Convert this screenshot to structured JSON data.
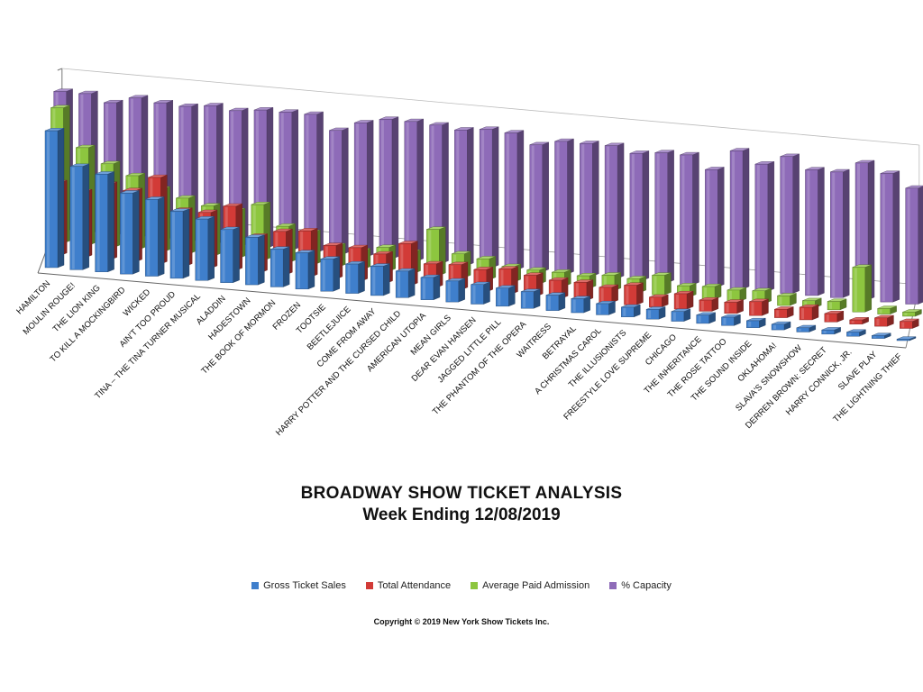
{
  "chart_data": {
    "type": "bar",
    "style": "3d-clustered-column",
    "title": "BROADWAY SHOW TICKET ANALYSIS",
    "subtitle": "Week Ending 12/08/2019",
    "categories": [
      "HAMILTON",
      "MOULIN ROUGE!",
      "THE LION KING",
      "TO KILL A MOCKINGBIRD",
      "WICKED",
      "AIN'T TOO PROUD",
      "TINA – THE TINA TURNER MUSICAL",
      "ALADDIN",
      "HADESTOWN",
      "THE BOOK OF MORMON",
      "FROZEN",
      "TOOTSIE",
      "BEETLEJUICE",
      "COME FROM AWAY",
      "HARRY POTTER AND THE CURSED CHILD",
      "AMERICAN UTOPIA",
      "MEAN GIRLS",
      "DEAR EVAN HANSEN",
      "JAGGED LITTLE PILL",
      "THE PHANTOM OF THE OPERA",
      "WAITRESS",
      "BETRAYAL",
      "A CHRISTMAS CAROL",
      "THE ILLUSIONISTS",
      "FREESTYLE LOVE SUPREME",
      "CHICAGO",
      "THE INHERITANCE",
      "THE ROSE TATTOO",
      "THE SOUND INSIDE",
      "OKLAHOMA!",
      "SLAVA'S SNOWSHOW",
      "DERREN BROWN: SECRET",
      "HARRY CONNICK, JR.",
      "SLAVE PLAY",
      "THE LIGHTNING THIEF"
    ],
    "series": [
      {
        "name": "Gross Ticket Sales",
        "color": "#3F7FCC",
        "values": [
          98,
          74,
          70,
          58,
          55,
          48,
          44,
          38,
          34,
          27,
          26,
          23,
          21,
          21,
          19,
          16,
          15,
          14,
          13,
          12,
          11,
          10,
          8,
          7,
          7,
          7,
          6,
          6,
          5,
          4,
          3,
          3,
          3,
          2,
          1
        ]
      },
      {
        "name": "Total Attendance",
        "color": "#D23B37",
        "values": [
          52,
          47,
          54,
          51,
          62,
          40,
          40,
          46,
          26,
          31,
          33,
          24,
          24,
          21,
          30,
          17,
          18,
          16,
          18,
          15,
          13,
          13,
          11,
          14,
          7,
          11,
          8,
          8,
          10,
          6,
          9,
          6,
          3,
          6,
          5
        ]
      },
      {
        "name": "Average Paid Admission",
        "color": "#8DC63F",
        "values": [
          97,
          70,
          60,
          53,
          45,
          40,
          36,
          34,
          40,
          26,
          23,
          15,
          13,
          17,
          15,
          33,
          17,
          15,
          11,
          10,
          10,
          9,
          11,
          10,
          14,
          8,
          9,
          8,
          9,
          7,
          5,
          6,
          32,
          4,
          3
        ]
      },
      {
        "name": "% Capacity",
        "color": "#8E6BB8",
        "values": [
          100,
          100,
          95,
          100,
          98,
          97,
          99,
          97,
          99,
          99,
          99,
          89,
          96,
          100,
          100,
          99,
          97,
          99,
          98,
          91,
          95,
          95,
          95,
          91,
          93,
          93,
          84,
          99,
          91,
          98,
          90,
          90,
          98,
          92,
          83
        ]
      }
    ],
    "ylim": [
      0,
      100
    ],
    "grid": false,
    "legend_position": "bottom"
  },
  "copyright": "Copyright © 2019 New York Show Tickets Inc."
}
